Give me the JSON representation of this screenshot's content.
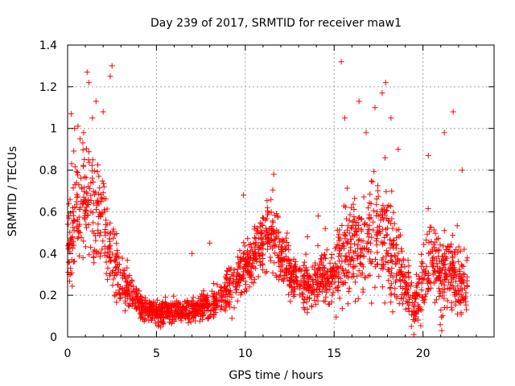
{
  "chart_data": {
    "type": "scatter",
    "title": "Day 239 of 2017, SRMTID for receiver maw1",
    "xlabel": "GPS time / hours",
    "ylabel": "SRMTID / TECUs",
    "xlim": [
      0,
      24
    ],
    "ylim": [
      0,
      1.4
    ],
    "x_ticks": [
      "0",
      "5",
      "10",
      "15",
      "20"
    ],
    "x_tick_values": [
      0,
      5,
      10,
      15,
      20
    ],
    "y_ticks": [
      "0",
      "0.2",
      "0.4",
      "0.6",
      "0.8",
      "1",
      "1.2",
      "1.4"
    ],
    "y_tick_values": [
      0,
      0.2,
      0.4,
      0.6,
      0.8,
      1.0,
      1.2,
      1.4
    ],
    "grid": true,
    "marker": "+",
    "marker_color": "#ff0000",
    "envelope": [
      [
        0.0,
        0.45,
        0.25
      ],
      [
        0.5,
        0.6,
        0.25
      ],
      [
        1.0,
        0.65,
        0.25
      ],
      [
        1.5,
        0.62,
        0.25
      ],
      [
        2.0,
        0.55,
        0.22
      ],
      [
        2.5,
        0.4,
        0.18
      ],
      [
        3.0,
        0.28,
        0.12
      ],
      [
        3.5,
        0.22,
        0.09
      ],
      [
        4.0,
        0.16,
        0.06
      ],
      [
        4.5,
        0.13,
        0.05
      ],
      [
        5.0,
        0.12,
        0.05
      ],
      [
        5.5,
        0.12,
        0.05
      ],
      [
        6.0,
        0.12,
        0.05
      ],
      [
        6.5,
        0.12,
        0.05
      ],
      [
        7.0,
        0.13,
        0.05
      ],
      [
        7.5,
        0.14,
        0.06
      ],
      [
        8.0,
        0.16,
        0.07
      ],
      [
        8.5,
        0.18,
        0.07
      ],
      [
        9.0,
        0.22,
        0.09
      ],
      [
        9.5,
        0.28,
        0.1
      ],
      [
        10.0,
        0.33,
        0.12
      ],
      [
        10.5,
        0.4,
        0.12
      ],
      [
        11.0,
        0.45,
        0.13
      ],
      [
        11.5,
        0.52,
        0.14
      ],
      [
        12.0,
        0.4,
        0.14
      ],
      [
        12.5,
        0.3,
        0.12
      ],
      [
        13.0,
        0.26,
        0.1
      ],
      [
        13.5,
        0.25,
        0.1
      ],
      [
        14.0,
        0.28,
        0.11
      ],
      [
        14.5,
        0.3,
        0.12
      ],
      [
        15.0,
        0.28,
        0.12
      ],
      [
        15.5,
        0.4,
        0.22
      ],
      [
        16.0,
        0.45,
        0.24
      ],
      [
        16.5,
        0.45,
        0.25
      ],
      [
        17.0,
        0.5,
        0.27
      ],
      [
        17.5,
        0.55,
        0.28
      ],
      [
        18.0,
        0.45,
        0.24
      ],
      [
        18.5,
        0.35,
        0.18
      ],
      [
        19.0,
        0.25,
        0.14
      ],
      [
        19.5,
        0.15,
        0.1
      ],
      [
        20.0,
        0.3,
        0.18
      ],
      [
        20.5,
        0.35,
        0.18
      ],
      [
        21.0,
        0.32,
        0.18
      ],
      [
        21.5,
        0.3,
        0.17
      ],
      [
        22.0,
        0.28,
        0.16
      ],
      [
        22.5,
        0.25,
        0.15
      ]
    ],
    "outliers": [
      [
        0.2,
        1.07
      ],
      [
        0.4,
        1.0
      ],
      [
        0.9,
        0.98
      ],
      [
        1.1,
        1.27
      ],
      [
        1.2,
        1.22
      ],
      [
        1.6,
        1.13
      ],
      [
        2.0,
        1.08
      ],
      [
        2.5,
        1.3
      ],
      [
        2.4,
        1.25
      ],
      [
        1.4,
        1.05
      ],
      [
        0.7,
        0.95
      ],
      [
        15.4,
        1.32
      ],
      [
        15.6,
        1.05
      ],
      [
        16.4,
        1.13
      ],
      [
        16.8,
        0.98
      ],
      [
        17.3,
        1.1
      ],
      [
        17.9,
        1.22
      ],
      [
        17.7,
        1.17
      ],
      [
        18.2,
        1.05
      ],
      [
        18.6,
        0.9
      ],
      [
        20.3,
        0.87
      ],
      [
        21.2,
        0.98
      ],
      [
        21.7,
        1.08
      ],
      [
        22.2,
        0.8
      ],
      [
        11.6,
        0.78
      ],
      [
        9.9,
        0.68
      ],
      [
        7.0,
        0.4
      ],
      [
        8.0,
        0.45
      ],
      [
        14.1,
        0.58
      ],
      [
        14.5,
        0.52
      ],
      [
        13.5,
        0.48
      ]
    ],
    "point_count": 2200
  }
}
